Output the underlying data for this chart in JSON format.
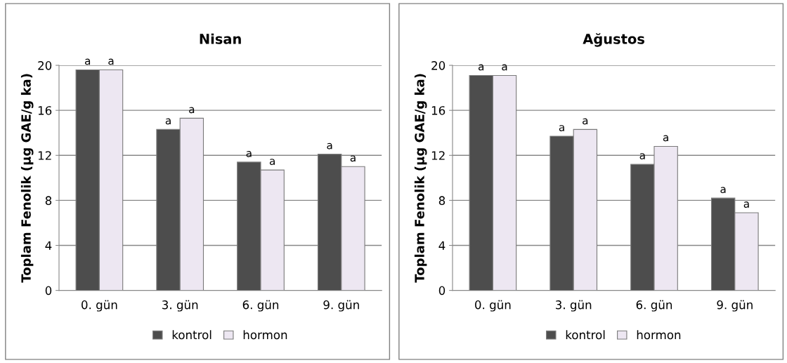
{
  "chart_data": [
    {
      "type": "bar",
      "title": "Nisan",
      "ylabel": "Toplam Fenolik (µg GAE/g ka)",
      "categories": [
        "0. gün",
        "3. gün",
        "6. gün",
        "9. gün"
      ],
      "ylim": [
        0,
        20
      ],
      "yticks": [
        0,
        4,
        8,
        12,
        16,
        20
      ],
      "grid": "y",
      "legend": "bottom",
      "series": [
        {
          "name": "kontrol",
          "color": "#4d4d4d",
          "values": [
            19.6,
            14.3,
            11.4,
            12.1
          ],
          "value_labels": [
            "a",
            "a",
            "a",
            "a"
          ]
        },
        {
          "name": "hormon",
          "color": "#ede7f2",
          "values": [
            19.6,
            15.3,
            10.7,
            11.0
          ],
          "value_labels": [
            "a",
            "a",
            "a",
            "a"
          ]
        }
      ]
    },
    {
      "type": "bar",
      "title": "Ağustos",
      "ylabel": "Toplam Fenolik (µg GAE/g ka)",
      "categories": [
        "0. gün",
        "3. gün",
        "6. gün",
        "9. gün"
      ],
      "ylim": [
        0,
        20
      ],
      "yticks": [
        0,
        4,
        8,
        12,
        16,
        20
      ],
      "grid": "y",
      "legend": "bottom",
      "series": [
        {
          "name": "kontrol",
          "color": "#4d4d4d",
          "values": [
            19.1,
            13.7,
            11.2,
            8.2
          ],
          "value_labels": [
            "a",
            "a",
            "a",
            "a"
          ]
        },
        {
          "name": "hormon",
          "color": "#ede7f2",
          "values": [
            19.1,
            14.3,
            12.8,
            6.9
          ],
          "value_labels": [
            "a",
            "a",
            "a",
            "a"
          ]
        }
      ]
    }
  ]
}
